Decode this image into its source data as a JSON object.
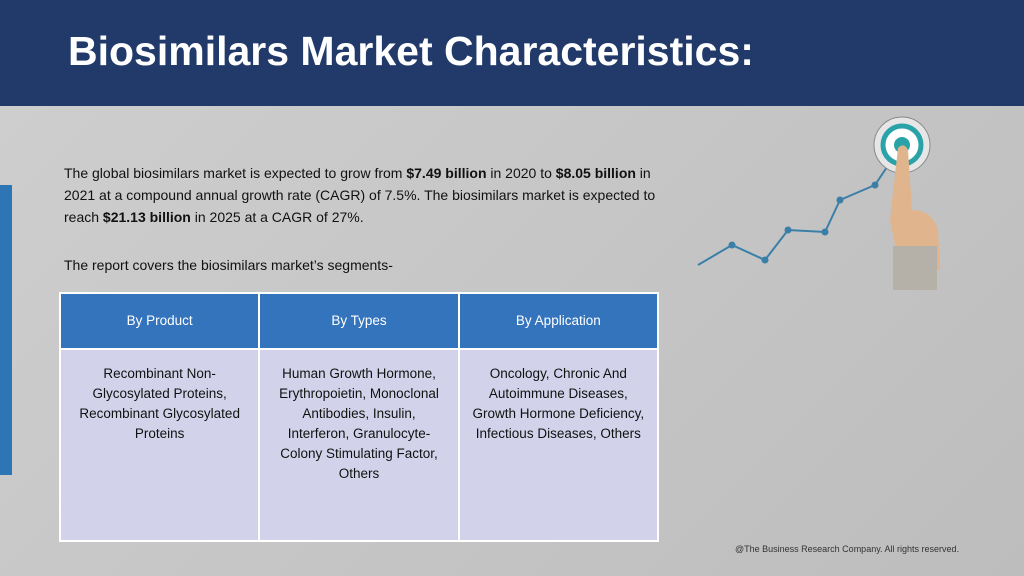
{
  "header": {
    "title": "Biosimilars Market Characteristics:"
  },
  "intro": [
    {
      "text": "The global biosimilars market is expected to grow from ",
      "bold": false
    },
    {
      "text": "$7.49 billion",
      "bold": true
    },
    {
      "text": " in 2020 to ",
      "bold": false
    },
    {
      "text": "$8.05 billion",
      "bold": true
    },
    {
      "text": " in 2021 at a compound annual growth rate (CAGR) of 7.5%. The biosimilars market is expected to reach ",
      "bold": false
    },
    {
      "text": "$21.13 billion",
      "bold": true
    },
    {
      "text": " in 2025 at a CAGR of 27%.",
      "bold": false
    }
  ],
  "segments_note": "The report covers the biosimilars market’s segments-",
  "table": {
    "headers": [
      "By Product",
      "By Types",
      "By Application"
    ],
    "rows": [
      [
        "Recombinant Non-Glycosylated Proteins, Recombinant Glycosylated Proteins",
        "Human Growth Hormone, Erythropoietin, Monoclonal Antibodies, Insulin, Interferon, Granulocyte-Colony Stimulating Factor, Others",
        "Oncology, Chronic And Autoimmune Diseases, Growth Hormone Deficiency, Infectious Diseases, Others"
      ]
    ]
  },
  "footer": "@The Business Research Company. All rights reserved."
}
